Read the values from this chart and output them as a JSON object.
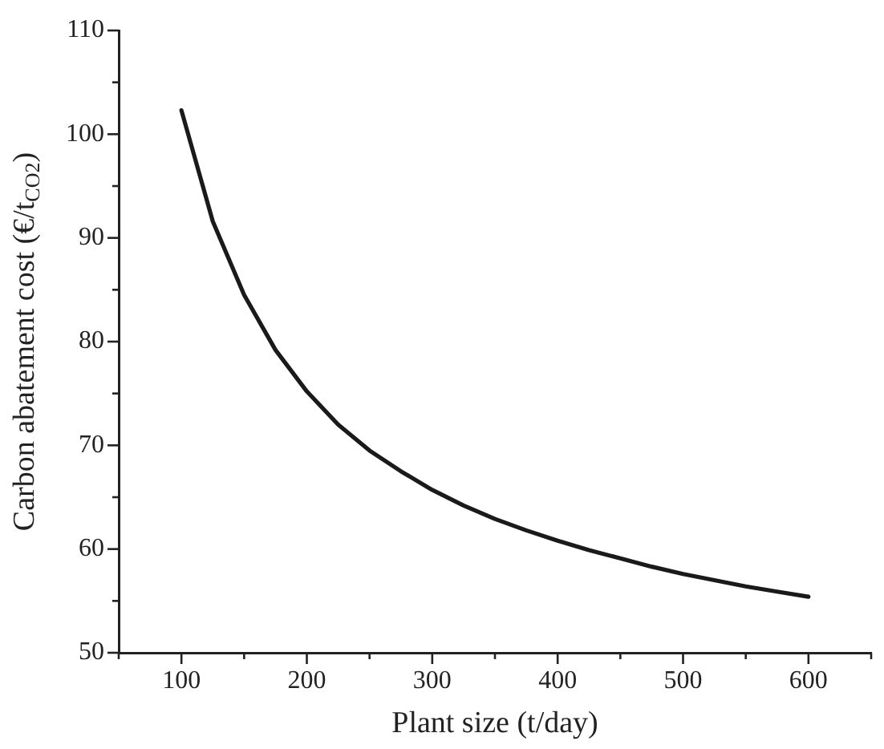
{
  "chart_data": {
    "type": "line",
    "xlabel": "Plant size (t/day)",
    "ylabel": "Carbon abatement cost (€/t$_{CO2}$)",
    "x": [
      100,
      125,
      150,
      175,
      200,
      225,
      250,
      275,
      300,
      325,
      350,
      375,
      400,
      425,
      450,
      475,
      500,
      525,
      550,
      575,
      600
    ],
    "series": [
      {
        "color": "#1a1a1a",
        "values": [
          102.3,
          91.6,
          84.5,
          79.2,
          75.2,
          72.0,
          69.5,
          67.5,
          65.7,
          64.2,
          62.9,
          61.8,
          60.8,
          59.9,
          59.1,
          58.3,
          57.6,
          57.0,
          56.4,
          55.9,
          55.4
        ]
      }
    ],
    "xlim": [
      50,
      650
    ],
    "xticks": [
      {
        "value": 50,
        "label": null
      },
      100,
      {
        "value": 150,
        "label": null
      },
      200,
      {
        "value": 250,
        "label": null
      },
      300,
      {
        "value": 350,
        "label": null
      },
      400,
      {
        "value": 450,
        "label": null
      },
      500,
      {
        "value": 550,
        "label": null
      },
      600,
      {
        "value": 650,
        "label": null
      }
    ],
    "ylim": [
      50,
      110
    ],
    "yticks": [
      50,
      {
        "value": 55,
        "label": null
      },
      60,
      {
        "value": 65,
        "label": null
      },
      70,
      {
        "value": 75,
        "label": null
      },
      80,
      {
        "value": 85,
        "label": null
      },
      90,
      {
        "value": 95,
        "label": null
      },
      100,
      {
        "value": 105,
        "label": null
      },
      110
    ],
    "grid": false,
    "legend": false,
    "marker": "none",
    "line_style": "solid"
  }
}
